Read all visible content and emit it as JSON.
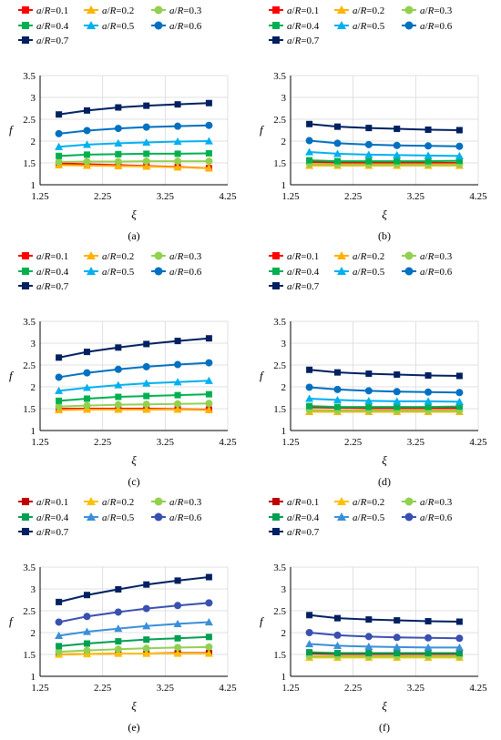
{
  "figure": {
    "title": ""
  },
  "chart_data": [
    {
      "type": "line",
      "caption": "(a)",
      "xlabel": "ξ",
      "ylabel": "f",
      "xlim": [
        1.25,
        4.25
      ],
      "ylim": [
        1,
        3.5
      ],
      "xticks": [
        "1.25",
        "2.25",
        "3.25",
        "4.25"
      ],
      "yticks": [
        "1",
        "1.5",
        "2",
        "2.5",
        "3",
        "3.5"
      ],
      "grid": true,
      "legend": "top",
      "x": [
        1.55,
        2.0,
        2.5,
        2.95,
        3.45,
        3.95
      ],
      "series": [
        {
          "name": "a/R=0.1",
          "color": "#ff0000",
          "marker": "square",
          "values": [
            1.49,
            1.47,
            1.45,
            1.43,
            1.41,
            1.38
          ]
        },
        {
          "name": "a/R=0.2",
          "color": "#ffb300",
          "marker": "triangle",
          "values": [
            1.45,
            1.44,
            1.43,
            1.42,
            1.4,
            1.38
          ]
        },
        {
          "name": "a/R=0.3",
          "color": "#92d050",
          "marker": "circle",
          "values": [
            1.52,
            1.53,
            1.53,
            1.54,
            1.54,
            1.54
          ]
        },
        {
          "name": "a/R=0.4",
          "color": "#00b050",
          "marker": "square",
          "values": [
            1.66,
            1.69,
            1.7,
            1.71,
            1.71,
            1.72
          ]
        },
        {
          "name": "a/R=0.5",
          "color": "#00b0f0",
          "marker": "triangle",
          "values": [
            1.87,
            1.92,
            1.95,
            1.97,
            1.99,
            2.0
          ]
        },
        {
          "name": "a/R=0.6",
          "color": "#0070c0",
          "marker": "circle",
          "values": [
            2.17,
            2.24,
            2.29,
            2.32,
            2.34,
            2.36
          ]
        },
        {
          "name": "a/R=0.7",
          "color": "#002060",
          "marker": "square",
          "values": [
            2.61,
            2.7,
            2.77,
            2.81,
            2.84,
            2.87
          ]
        }
      ]
    },
    {
      "type": "line",
      "caption": "(b)",
      "xlabel": "ξ",
      "ylabel": "f",
      "xlim": [
        1.25,
        4.25
      ],
      "ylim": [
        1,
        3.5
      ],
      "xticks": [
        "1.25",
        "2.25",
        "3.25",
        "4.25"
      ],
      "yticks": [
        "1",
        "1.5",
        "2",
        "2.5",
        "3",
        "3.5"
      ],
      "grid": true,
      "legend": "top",
      "x": [
        1.55,
        2.0,
        2.5,
        2.95,
        3.45,
        3.95
      ],
      "series": [
        {
          "name": "a/R=0.1",
          "color": "#ff0000",
          "marker": "square",
          "values": [
            1.52,
            1.51,
            1.51,
            1.51,
            1.5,
            1.5
          ]
        },
        {
          "name": "a/R=0.2",
          "color": "#ffb300",
          "marker": "triangle",
          "values": [
            1.44,
            1.44,
            1.44,
            1.44,
            1.44,
            1.44
          ]
        },
        {
          "name": "a/R=0.3",
          "color": "#92d050",
          "marker": "circle",
          "values": [
            1.48,
            1.47,
            1.47,
            1.47,
            1.47,
            1.47
          ]
        },
        {
          "name": "a/R=0.4",
          "color": "#00b050",
          "marker": "square",
          "values": [
            1.56,
            1.54,
            1.54,
            1.54,
            1.54,
            1.55
          ]
        },
        {
          "name": "a/R=0.5",
          "color": "#00b0f0",
          "marker": "triangle",
          "values": [
            1.75,
            1.71,
            1.69,
            1.68,
            1.67,
            1.66
          ]
        },
        {
          "name": "a/R=0.6",
          "color": "#0070c0",
          "marker": "circle",
          "values": [
            2.01,
            1.95,
            1.92,
            1.9,
            1.89,
            1.88
          ]
        },
        {
          "name": "a/R=0.7",
          "color": "#002060",
          "marker": "square",
          "values": [
            2.39,
            2.33,
            2.3,
            2.28,
            2.26,
            2.25
          ]
        }
      ]
    },
    {
      "type": "line",
      "caption": "(c)",
      "xlabel": "ξ",
      "ylabel": "f",
      "xlim": [
        1.25,
        4.25
      ],
      "ylim": [
        1,
        3.5
      ],
      "xticks": [
        "1.25",
        "2.25",
        "3.25",
        "4.25"
      ],
      "yticks": [
        "1",
        "1.5",
        "2",
        "2.5",
        "3",
        "3.5"
      ],
      "grid": true,
      "legend": "top",
      "x": [
        1.55,
        2.0,
        2.5,
        2.95,
        3.45,
        3.95
      ],
      "series": [
        {
          "name": "a/R=0.1",
          "color": "#ff0000",
          "marker": "square",
          "values": [
            1.5,
            1.5,
            1.5,
            1.5,
            1.49,
            1.48
          ]
        },
        {
          "name": "a/R=0.2",
          "color": "#ffb300",
          "marker": "triangle",
          "values": [
            1.47,
            1.48,
            1.48,
            1.48,
            1.48,
            1.47
          ]
        },
        {
          "name": "a/R=0.3",
          "color": "#92d050",
          "marker": "circle",
          "values": [
            1.55,
            1.57,
            1.59,
            1.6,
            1.61,
            1.62
          ]
        },
        {
          "name": "a/R=0.4",
          "color": "#00b050",
          "marker": "square",
          "values": [
            1.68,
            1.73,
            1.77,
            1.79,
            1.81,
            1.83
          ]
        },
        {
          "name": "a/R=0.5",
          "color": "#00b0f0",
          "marker": "triangle",
          "values": [
            1.91,
            1.98,
            2.04,
            2.08,
            2.11,
            2.14
          ]
        },
        {
          "name": "a/R=0.6",
          "color": "#0070c0",
          "marker": "circle",
          "values": [
            2.22,
            2.32,
            2.4,
            2.46,
            2.51,
            2.55
          ]
        },
        {
          "name": "a/R=0.7",
          "color": "#002060",
          "marker": "square",
          "values": [
            2.67,
            2.8,
            2.9,
            2.98,
            3.05,
            3.11
          ]
        }
      ]
    },
    {
      "type": "line",
      "caption": "(d)",
      "xlabel": "ξ",
      "ylabel": "f",
      "xlim": [
        1.25,
        4.25
      ],
      "ylim": [
        1,
        3.5
      ],
      "xticks": [
        "1.25",
        "2.25",
        "3.25",
        "4.25"
      ],
      "yticks": [
        "1",
        "1.5",
        "2",
        "2.5",
        "3",
        "3.5"
      ],
      "grid": true,
      "legend": "top",
      "x": [
        1.55,
        2.0,
        2.5,
        2.95,
        3.45,
        3.95
      ],
      "series": [
        {
          "name": "a/R=0.1",
          "color": "#ff0000",
          "marker": "square",
          "values": [
            1.53,
            1.52,
            1.51,
            1.51,
            1.51,
            1.51
          ]
        },
        {
          "name": "a/R=0.2",
          "color": "#ffb300",
          "marker": "triangle",
          "values": [
            1.43,
            1.43,
            1.43,
            1.43,
            1.43,
            1.43
          ]
        },
        {
          "name": "a/R=0.3",
          "color": "#92d050",
          "marker": "circle",
          "values": [
            1.47,
            1.46,
            1.46,
            1.46,
            1.46,
            1.46
          ]
        },
        {
          "name": "a/R=0.4",
          "color": "#00b050",
          "marker": "square",
          "values": [
            1.56,
            1.54,
            1.54,
            1.54,
            1.54,
            1.55
          ]
        },
        {
          "name": "a/R=0.5",
          "color": "#00b0f0",
          "marker": "triangle",
          "values": [
            1.73,
            1.7,
            1.68,
            1.67,
            1.67,
            1.66
          ]
        },
        {
          "name": "a/R=0.6",
          "color": "#0070c0",
          "marker": "circle",
          "values": [
            1.99,
            1.94,
            1.91,
            1.89,
            1.88,
            1.87
          ]
        },
        {
          "name": "a/R=0.7",
          "color": "#002060",
          "marker": "square",
          "values": [
            2.39,
            2.33,
            2.3,
            2.28,
            2.26,
            2.25
          ]
        }
      ]
    },
    {
      "type": "line",
      "caption": "(e)",
      "xlabel": "ξ",
      "ylabel": "f",
      "xlim": [
        1.25,
        4.25
      ],
      "ylim": [
        1,
        3.5
      ],
      "xticks": [
        "1.25",
        "2.25",
        "3.25",
        "4.25"
      ],
      "yticks": [
        "1",
        "1.5",
        "2",
        "2.5",
        "3",
        "3.5"
      ],
      "grid": true,
      "legend": "top",
      "x": [
        1.55,
        2.0,
        2.5,
        2.95,
        3.45,
        3.95
      ],
      "series": [
        {
          "name": "a/R=0.1",
          "color": "#c00000",
          "marker": "square",
          "values": [
            1.5,
            1.51,
            1.52,
            1.52,
            1.53,
            1.53
          ]
        },
        {
          "name": "a/R=0.2",
          "color": "#ffc000",
          "marker": "triangle",
          "values": [
            1.5,
            1.51,
            1.52,
            1.52,
            1.52,
            1.52
          ]
        },
        {
          "name": "a/R=0.3",
          "color": "#92d050",
          "marker": "circle",
          "values": [
            1.56,
            1.59,
            1.62,
            1.64,
            1.66,
            1.67
          ]
        },
        {
          "name": "a/R=0.4",
          "color": "#00a050",
          "marker": "square",
          "values": [
            1.69,
            1.75,
            1.8,
            1.84,
            1.87,
            1.9
          ]
        },
        {
          "name": "a/R=0.5",
          "color": "#3a8fd9",
          "marker": "triangle",
          "values": [
            1.93,
            2.02,
            2.09,
            2.15,
            2.2,
            2.24
          ]
        },
        {
          "name": "a/R=0.6",
          "color": "#3a50b0",
          "marker": "circle",
          "values": [
            2.24,
            2.37,
            2.47,
            2.55,
            2.62,
            2.68
          ]
        },
        {
          "name": "a/R=0.7",
          "color": "#002060",
          "marker": "square",
          "values": [
            2.7,
            2.86,
            2.99,
            3.1,
            3.19,
            3.27
          ]
        }
      ]
    },
    {
      "type": "line",
      "caption": "(f)",
      "xlabel": "ξ",
      "ylabel": "f",
      "xlim": [
        1.25,
        4.25
      ],
      "ylim": [
        1,
        3.5
      ],
      "xticks": [
        "1.25",
        "2.25",
        "3.25",
        "4.25"
      ],
      "yticks": [
        "1",
        "1.5",
        "2",
        "2.5",
        "3",
        "3.5"
      ],
      "grid": true,
      "legend": "top",
      "x": [
        1.55,
        2.0,
        2.5,
        2.95,
        3.45,
        3.95
      ],
      "series": [
        {
          "name": "a/R=0.1",
          "color": "#c00000",
          "marker": "square",
          "values": [
            1.52,
            1.51,
            1.51,
            1.51,
            1.51,
            1.51
          ]
        },
        {
          "name": "a/R=0.2",
          "color": "#ffc000",
          "marker": "triangle",
          "values": [
            1.43,
            1.43,
            1.43,
            1.43,
            1.43,
            1.43
          ]
        },
        {
          "name": "a/R=0.3",
          "color": "#92d050",
          "marker": "circle",
          "values": [
            1.46,
            1.46,
            1.46,
            1.46,
            1.46,
            1.46
          ]
        },
        {
          "name": "a/R=0.4",
          "color": "#00a050",
          "marker": "square",
          "values": [
            1.55,
            1.53,
            1.53,
            1.53,
            1.53,
            1.53
          ]
        },
        {
          "name": "a/R=0.5",
          "color": "#3a8fd9",
          "marker": "triangle",
          "values": [
            1.74,
            1.7,
            1.68,
            1.67,
            1.66,
            1.66
          ]
        },
        {
          "name": "a/R=0.6",
          "color": "#3a50b0",
          "marker": "circle",
          "values": [
            2.0,
            1.94,
            1.91,
            1.89,
            1.88,
            1.87
          ]
        },
        {
          "name": "a/R=0.7",
          "color": "#002060",
          "marker": "square",
          "values": [
            2.4,
            2.33,
            2.3,
            2.28,
            2.26,
            2.25
          ]
        }
      ]
    }
  ]
}
